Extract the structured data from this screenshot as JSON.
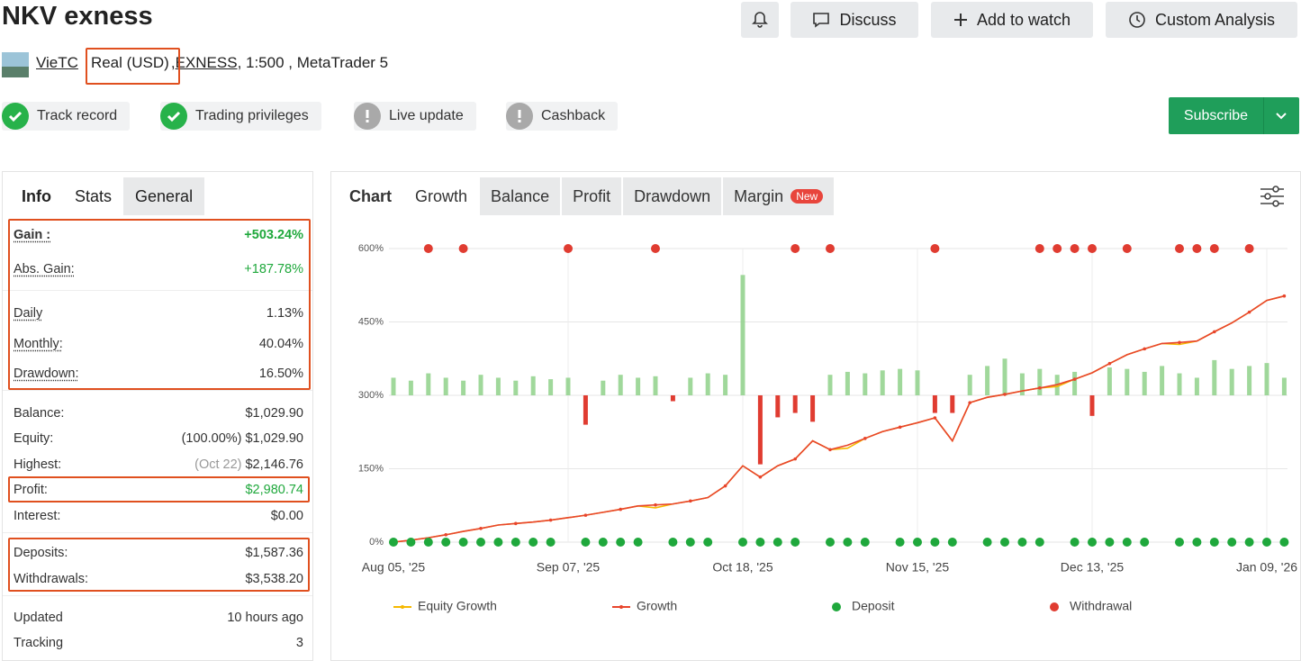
{
  "header": {
    "title": "NKV exness",
    "buttons": [
      "Discuss",
      "Add to watch",
      "Custom Analysis"
    ],
    "account": {
      "user": "VieTC",
      "account_type": "Real (USD)",
      "separator": ",",
      "broker": "EXNESS",
      "details": ", 1:500 , MetaTrader 5"
    },
    "badges": [
      {
        "label": "Track record",
        "status": "ok"
      },
      {
        "label": "Trading privileges",
        "status": "ok"
      },
      {
        "label": "Live update",
        "status": "warn"
      },
      {
        "label": "Cashback",
        "status": "warn"
      }
    ],
    "subscribe": "Subscribe"
  },
  "stats": {
    "tabs": [
      "Info",
      "Stats",
      "General"
    ],
    "rows": [
      {
        "label": "Gain :",
        "value": "+503.24%"
      },
      {
        "label": "Abs. Gain:",
        "value": "+187.78%"
      },
      {
        "label": "Daily",
        "value": "1.13%"
      },
      {
        "label": "Monthly:",
        "value": "40.04%"
      },
      {
        "label": "Drawdown:",
        "value": "16.50%"
      },
      {
        "label": "Balance:",
        "value": "$1,029.90"
      },
      {
        "label": "Equity:",
        "note": "(100.00%)",
        "value": "$1,029.90"
      },
      {
        "label": "Highest:",
        "note": "(Oct 22)",
        "value": "$2,146.76"
      },
      {
        "label": "Profit:",
        "value": "$2,980.74"
      },
      {
        "label": "Interest:",
        "value": "$0.00"
      },
      {
        "label": "Deposits:",
        "value": "$1,587.36"
      },
      {
        "label": "Withdrawals:",
        "value": "$3,538.20"
      },
      {
        "label": "Updated",
        "value": "10 hours ago"
      },
      {
        "label": "Tracking",
        "value": "3"
      }
    ]
  },
  "chart_tabs": [
    {
      "label": "Chart"
    },
    {
      "label": "Growth"
    },
    {
      "label": "Balance"
    },
    {
      "label": "Profit"
    },
    {
      "label": "Drawdown"
    },
    {
      "label": "Margin",
      "badge": "New"
    }
  ],
  "chart_data": {
    "type": "line",
    "categories": [
      "Aug 05, '25",
      null,
      null,
      null,
      null,
      null,
      null,
      null,
      null,
      null,
      "Sep 07, '25",
      null,
      null,
      null,
      null,
      null,
      null,
      null,
      null,
      null,
      "Oct 18, '25",
      null,
      null,
      null,
      null,
      null,
      null,
      null,
      null,
      null,
      "Nov 15, '25",
      null,
      null,
      null,
      null,
      null,
      null,
      null,
      null,
      null,
      "Dec 13, '25",
      null,
      null,
      null,
      null,
      null,
      null,
      null,
      null,
      null,
      "Jan 09, '26",
      null
    ],
    "ylim": [
      0,
      600
    ],
    "yticks": [
      {
        "value": 0,
        "label": "0%"
      },
      {
        "value": 150,
        "label": "150%"
      },
      {
        "value": 300,
        "label": "300%"
      },
      {
        "value": 450,
        "label": "450%"
      },
      {
        "value": 600,
        "label": "600%"
      }
    ],
    "y2lim": [
      -100,
      100
    ],
    "grid": true,
    "series": [
      {
        "name": "Equity Growth",
        "type": "line",
        "color": "#f5b800",
        "values": [
          0,
          4,
          9,
          15,
          22,
          28,
          35,
          38,
          41,
          45,
          50,
          55,
          61,
          67,
          74,
          70,
          78,
          84,
          91,
          115,
          156,
          133,
          156,
          170,
          207,
          189,
          192,
          212,
          226,
          235,
          244,
          254,
          207,
          285,
          296,
          302,
          309,
          315,
          318,
          333,
          346,
          365,
          383,
          395,
          406,
          404,
          411,
          430,
          448,
          470,
          494,
          503
        ]
      },
      {
        "name": "Growth",
        "type": "line",
        "color": "#e8452c",
        "values": [
          0,
          4,
          9,
          15,
          22,
          28,
          35,
          38,
          41,
          45,
          50,
          55,
          61,
          67,
          74,
          76,
          78,
          84,
          91,
          115,
          156,
          133,
          156,
          170,
          207,
          189,
          198,
          212,
          226,
          235,
          244,
          254,
          207,
          285,
          296,
          302,
          309,
          315,
          322,
          333,
          346,
          365,
          383,
          395,
          406,
          408,
          411,
          430,
          448,
          470,
          494,
          503
        ]
      },
      {
        "name": "Deposit",
        "type": "scatter",
        "color": "#1fa83c",
        "x": [
          0,
          1,
          2,
          3,
          4,
          5,
          6,
          7,
          8,
          9,
          11,
          12,
          13,
          14,
          16,
          17,
          18,
          20,
          21,
          22,
          23,
          25,
          26,
          27,
          29,
          30,
          31,
          32,
          34,
          35,
          36,
          37,
          39,
          40,
          41,
          42,
          43,
          45,
          46,
          47,
          48,
          49,
          50,
          51
        ]
      },
      {
        "name": "Withdrawal",
        "type": "scatter",
        "color": "#e03c31",
        "x": [
          2,
          4,
          10,
          15,
          23,
          25,
          31,
          37,
          38,
          39,
          40,
          42,
          45,
          46,
          47,
          49
        ]
      }
    ],
    "bars": {
      "axis": "y2",
      "color": "#8fd18a",
      "negative_color": "#e03c31",
      "values": [
        12,
        10,
        15,
        12,
        10,
        14,
        12,
        10,
        13,
        11,
        12,
        -20,
        10,
        14,
        12,
        13,
        -4,
        12,
        15,
        14,
        82,
        -47,
        -15,
        -12,
        -18,
        14,
        16,
        15,
        17,
        18,
        17,
        -12,
        -12,
        14,
        20,
        25,
        15,
        18,
        14,
        16,
        -14,
        19,
        18,
        16,
        20,
        15,
        12,
        24,
        18,
        20,
        22,
        12
      ]
    }
  }
}
